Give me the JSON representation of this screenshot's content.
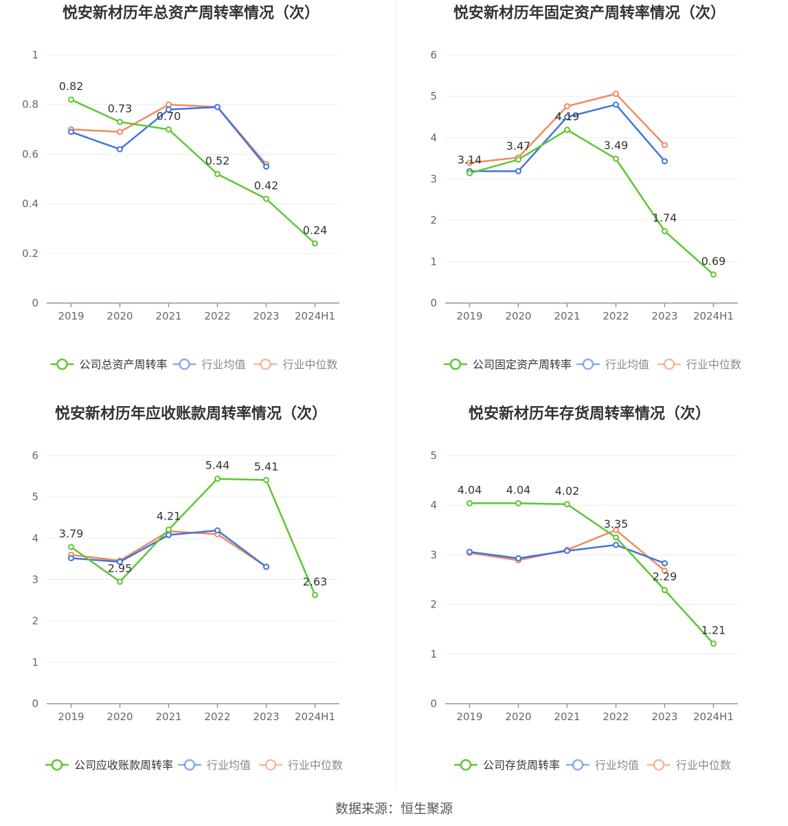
{
  "footer": {
    "source": "数据来源：恒生聚源"
  },
  "colors": {
    "company": "#5cc72e",
    "avg": "#3f73df",
    "median": "#f08a5d"
  },
  "chart_data": [
    {
      "type": "line",
      "title": "悦安新材历年总资产周转率情况（次）",
      "categories": [
        "2019",
        "2020",
        "2021",
        "2022",
        "2023",
        "2024H1"
      ],
      "ylim": [
        0,
        1
      ],
      "yticks": [
        "0",
        "0.2",
        "0.4",
        "0.6",
        "0.8",
        "1"
      ],
      "yticks_values": [
        0,
        0.2,
        0.4,
        0.6,
        0.8,
        1
      ],
      "legend_position": "bottom",
      "grid": true,
      "series": [
        {
          "name": "公司总资产周转率",
          "values": [
            0.82,
            0.73,
            0.7,
            0.52,
            0.42,
            0.24
          ],
          "labels": [
            "0.82",
            "0.73",
            "0.70",
            "0.52",
            "0.42",
            "0.24"
          ]
        },
        {
          "name": "行业均值",
          "values": [
            0.69,
            0.62,
            0.78,
            0.79,
            0.55,
            null
          ]
        },
        {
          "name": "行业中位数",
          "values": [
            0.7,
            0.69,
            0.8,
            0.79,
            0.56,
            null
          ]
        }
      ]
    },
    {
      "type": "line",
      "title": "悦安新材历年固定资产周转率情况（次）",
      "categories": [
        "2019",
        "2020",
        "2021",
        "2022",
        "2023",
        "2024H1"
      ],
      "ylim": [
        0,
        6
      ],
      "yticks": [
        "0",
        "1",
        "2",
        "3",
        "4",
        "5",
        "6"
      ],
      "yticks_values": [
        0,
        1,
        2,
        3,
        4,
        5,
        6
      ],
      "legend_position": "bottom",
      "grid": true,
      "series": [
        {
          "name": "公司固定资产周转率",
          "values": [
            3.14,
            3.47,
            4.19,
            3.49,
            1.74,
            0.69
          ],
          "labels": [
            "3.14",
            "3.47",
            "4.19",
            "3.49",
            "1.74",
            "0.69"
          ]
        },
        {
          "name": "行业均值",
          "values": [
            3.19,
            3.19,
            4.5,
            4.8,
            3.43,
            null
          ]
        },
        {
          "name": "行业中位数",
          "values": [
            3.39,
            3.52,
            4.76,
            5.06,
            3.82,
            null
          ]
        }
      ]
    },
    {
      "type": "line",
      "title": "悦安新材历年应收账款周转率情况（次）",
      "categories": [
        "2019",
        "2020",
        "2021",
        "2022",
        "2023",
        "2024H1"
      ],
      "ylim": [
        0,
        6
      ],
      "yticks": [
        "0",
        "1",
        "2",
        "3",
        "4",
        "5",
        "6"
      ],
      "yticks_values": [
        0,
        1,
        2,
        3,
        4,
        5,
        6
      ],
      "legend_position": "bottom",
      "grid": true,
      "series": [
        {
          "name": "公司应收账款周转率",
          "values": [
            3.79,
            2.95,
            4.21,
            5.44,
            5.41,
            2.63
          ],
          "labels": [
            "3.79",
            "2.95",
            "4.21",
            "5.44",
            "5.41",
            "2.63"
          ]
        },
        {
          "name": "行业均值",
          "values": [
            3.52,
            3.43,
            4.08,
            4.19,
            3.31,
            null
          ]
        },
        {
          "name": "行业中位数",
          "values": [
            3.6,
            3.46,
            4.17,
            4.1,
            3.31,
            null
          ]
        }
      ]
    },
    {
      "type": "line",
      "title": "悦安新材历年存货周转率情况（次）",
      "categories": [
        "2019",
        "2020",
        "2021",
        "2022",
        "2023",
        "2024H1"
      ],
      "ylim": [
        0,
        5
      ],
      "yticks": [
        "0",
        "1",
        "2",
        "3",
        "4",
        "5"
      ],
      "yticks_values": [
        0,
        1,
        2,
        3,
        4,
        5
      ],
      "legend_position": "bottom",
      "grid": true,
      "series": [
        {
          "name": "公司存货周转率",
          "values": [
            4.04,
            4.04,
            4.02,
            3.35,
            2.29,
            1.21
          ],
          "labels": [
            "4.04",
            "4.04",
            "4.02",
            "3.35",
            "2.29",
            "1.21"
          ]
        },
        {
          "name": "行业均值",
          "values": [
            3.06,
            2.93,
            3.08,
            3.2,
            2.83,
            null
          ]
        },
        {
          "name": "行业中位数",
          "values": [
            3.04,
            2.89,
            3.1,
            3.5,
            2.68,
            null
          ]
        }
      ]
    }
  ]
}
